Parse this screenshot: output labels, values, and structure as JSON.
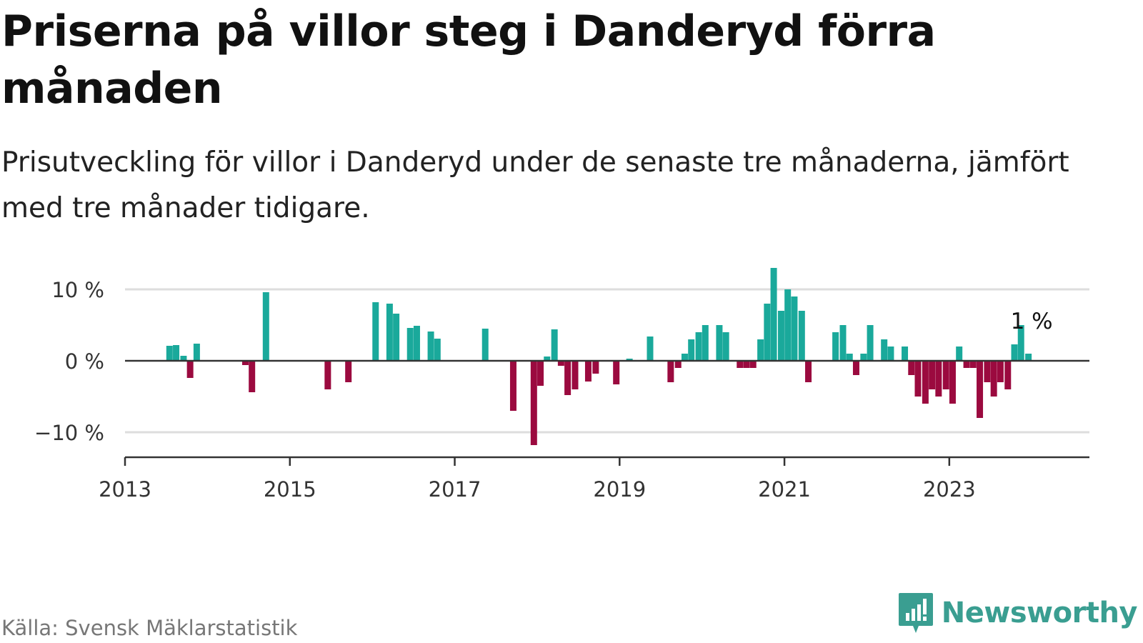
{
  "title": "Priserna på villor steg i Danderyd förra månaden",
  "subtitle": "Prisutveckling för villor i Danderyd under de senaste tre månaderna, jämfört med tre månader tidigare.",
  "source": "Källa: Svensk Mäklarstatistik",
  "brand": {
    "name": "Newsworthy",
    "icon": "newsworthy-logo-icon"
  },
  "colors": {
    "positive": "#1aa99b",
    "negative": "#9b0a3f",
    "grid": "#dddddd",
    "axis": "#333333",
    "brand": "#3a9e91"
  },
  "chart_data": {
    "type": "bar",
    "title": "Priserna på villor steg i Danderyd förra månaden",
    "xlabel": "",
    "ylabel": "",
    "unit": "%",
    "ylim": [
      -13.5,
      13.5
    ],
    "yticks": [
      10,
      0,
      -10
    ],
    "ytick_labels": [
      "10 %",
      "0 %",
      "−10 %"
    ],
    "xlim": [
      2013,
      2024.7
    ],
    "xticks": [
      2013,
      2015,
      2017,
      2019,
      2021,
      2023
    ],
    "xtick_labels": [
      "2013",
      "2015",
      "2017",
      "2019",
      "2021",
      "2023"
    ],
    "grid": true,
    "annotation": {
      "text": "1 %",
      "x": 2023.83,
      "y": 1
    },
    "x": [
      2013.54,
      2013.62,
      2013.71,
      2013.79,
      2013.87,
      2014.46,
      2014.54,
      2014.71,
      2015.46,
      2015.71,
      2016.04,
      2016.21,
      2016.29,
      2016.46,
      2016.54,
      2016.71,
      2016.79,
      2017.37,
      2017.71,
      2017.96,
      2018.04,
      2018.12,
      2018.21,
      2018.29,
      2018.37,
      2018.46,
      2018.62,
      2018.71,
      2018.96,
      2019.12,
      2019.37,
      2019.62,
      2019.71,
      2019.79,
      2019.87,
      2019.96,
      2020.04,
      2020.21,
      2020.29,
      2020.46,
      2020.54,
      2020.62,
      2020.71,
      2020.79,
      2020.87,
      2020.96,
      2021.04,
      2021.12,
      2021.21,
      2021.29,
      2021.62,
      2021.71,
      2021.79,
      2021.87,
      2021.96,
      2022.04,
      2022.21,
      2022.29,
      2022.46,
      2022.54,
      2022.62,
      2022.71,
      2022.79,
      2022.87,
      2022.96,
      2023.04,
      2023.12,
      2023.21,
      2023.29,
      2023.37,
      2023.46,
      2023.54,
      2023.62,
      2023.71,
      2023.79,
      2023.87,
      2023.96
    ],
    "values": [
      2.1,
      2.2,
      0.7,
      -2.4,
      2.4,
      -0.6,
      -4.4,
      9.6,
      -4.0,
      -3.0,
      8.2,
      8.0,
      6.6,
      4.6,
      4.9,
      4.1,
      3.1,
      4.5,
      -7.0,
      -11.8,
      -3.5,
      0.6,
      4.4,
      -0.7,
      -4.8,
      -4.0,
      -2.9,
      -1.8,
      -3.3,
      0.3,
      3.4,
      -3.0,
      -1.0,
      1.0,
      3.0,
      4.0,
      5.0,
      5.0,
      4.0,
      -1.0,
      -1.0,
      -1.0,
      3.0,
      8.0,
      13.0,
      7.0,
      10.0,
      9.0,
      7.0,
      -3.0,
      4.0,
      5.0,
      1.0,
      -2.0,
      1.0,
      5.0,
      3.0,
      2.0,
      2.0,
      -2.0,
      -5.0,
      -6.0,
      -4.0,
      -5.0,
      -4.0,
      -6.0,
      2.0,
      -1.0,
      -1.0,
      -8.0,
      -3.0,
      -5.0,
      -3.0,
      -4.0,
      2.3,
      5.0,
      1.0
    ]
  }
}
